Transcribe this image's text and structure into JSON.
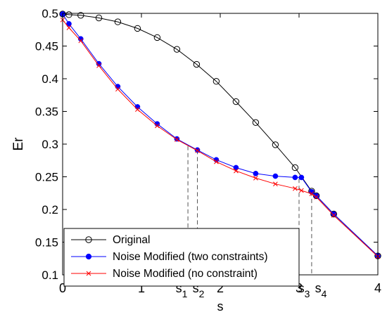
{
  "chart_data": {
    "type": "line",
    "xlabel": "s",
    "ylabel": "Er",
    "xlim": [
      0,
      4
    ],
    "ylim": [
      0.1,
      0.5
    ],
    "xticks": [
      0,
      1,
      2,
      3,
      4
    ],
    "xtick_labels": [
      "0",
      "1",
      "2",
      "3",
      "4"
    ],
    "yticks": [
      0.1,
      0.15,
      0.2,
      0.25,
      0.3,
      0.35,
      0.4,
      0.45,
      0.5
    ],
    "ytick_labels": [
      "0.1",
      "0.15",
      "0.2",
      "0.25",
      "0.3",
      "0.35",
      "0.4",
      "0.45",
      "0.5"
    ],
    "grid": false,
    "legend_position": "bottom-left",
    "s_markers": [
      {
        "label": "s",
        "sub": "1",
        "x": 1.59,
        "y": 0.297
      },
      {
        "label": "s",
        "sub": "2",
        "x": 1.71,
        "y": 0.291
      },
      {
        "label": "s",
        "sub": "3",
        "x": 3.0,
        "y": 0.247
      },
      {
        "label": "s",
        "sub": "4",
        "x": 3.16,
        "y": 0.227
      }
    ],
    "series": [
      {
        "name": "Original",
        "color": "#000000",
        "marker": "open-circle",
        "x": [
          0.0,
          0.08,
          0.23,
          0.46,
          0.7,
          0.95,
          1.2,
          1.45,
          1.7,
          1.95,
          2.2,
          2.45,
          2.7,
          2.95,
          3.16,
          3.22,
          3.44,
          4.0
        ],
        "y": [
          0.499,
          0.498,
          0.497,
          0.493,
          0.487,
          0.477,
          0.463,
          0.445,
          0.422,
          0.396,
          0.365,
          0.333,
          0.299,
          0.264,
          0.228,
          0.221,
          0.193,
          0.129
        ]
      },
      {
        "name": "Noise Modified (two constraints)",
        "color": "#0000ff",
        "marker": "filled-dot",
        "x": [
          0.0,
          0.08,
          0.23,
          0.46,
          0.7,
          0.95,
          1.2,
          1.45,
          1.71,
          1.95,
          2.2,
          2.45,
          2.7,
          2.95,
          3.03,
          3.16,
          3.22,
          3.44,
          4.0
        ],
        "y": [
          0.499,
          0.484,
          0.461,
          0.423,
          0.388,
          0.357,
          0.331,
          0.308,
          0.291,
          0.276,
          0.264,
          0.255,
          0.251,
          0.249,
          0.249,
          0.227,
          0.221,
          0.193,
          0.129
        ]
      },
      {
        "name": "Noise Modified (no constraint)",
        "color": "#ff0000",
        "marker": "x",
        "x": [
          0.0,
          0.08,
          0.23,
          0.46,
          0.7,
          0.95,
          1.2,
          1.45,
          1.71,
          1.95,
          2.2,
          2.45,
          2.7,
          2.95,
          3.03,
          3.16,
          3.22,
          3.44,
          4.0
        ],
        "y": [
          0.49,
          0.478,
          0.458,
          0.42,
          0.384,
          0.353,
          0.328,
          0.307,
          0.29,
          0.273,
          0.259,
          0.248,
          0.239,
          0.232,
          0.229,
          0.224,
          0.219,
          0.191,
          0.128
        ]
      }
    ]
  }
}
